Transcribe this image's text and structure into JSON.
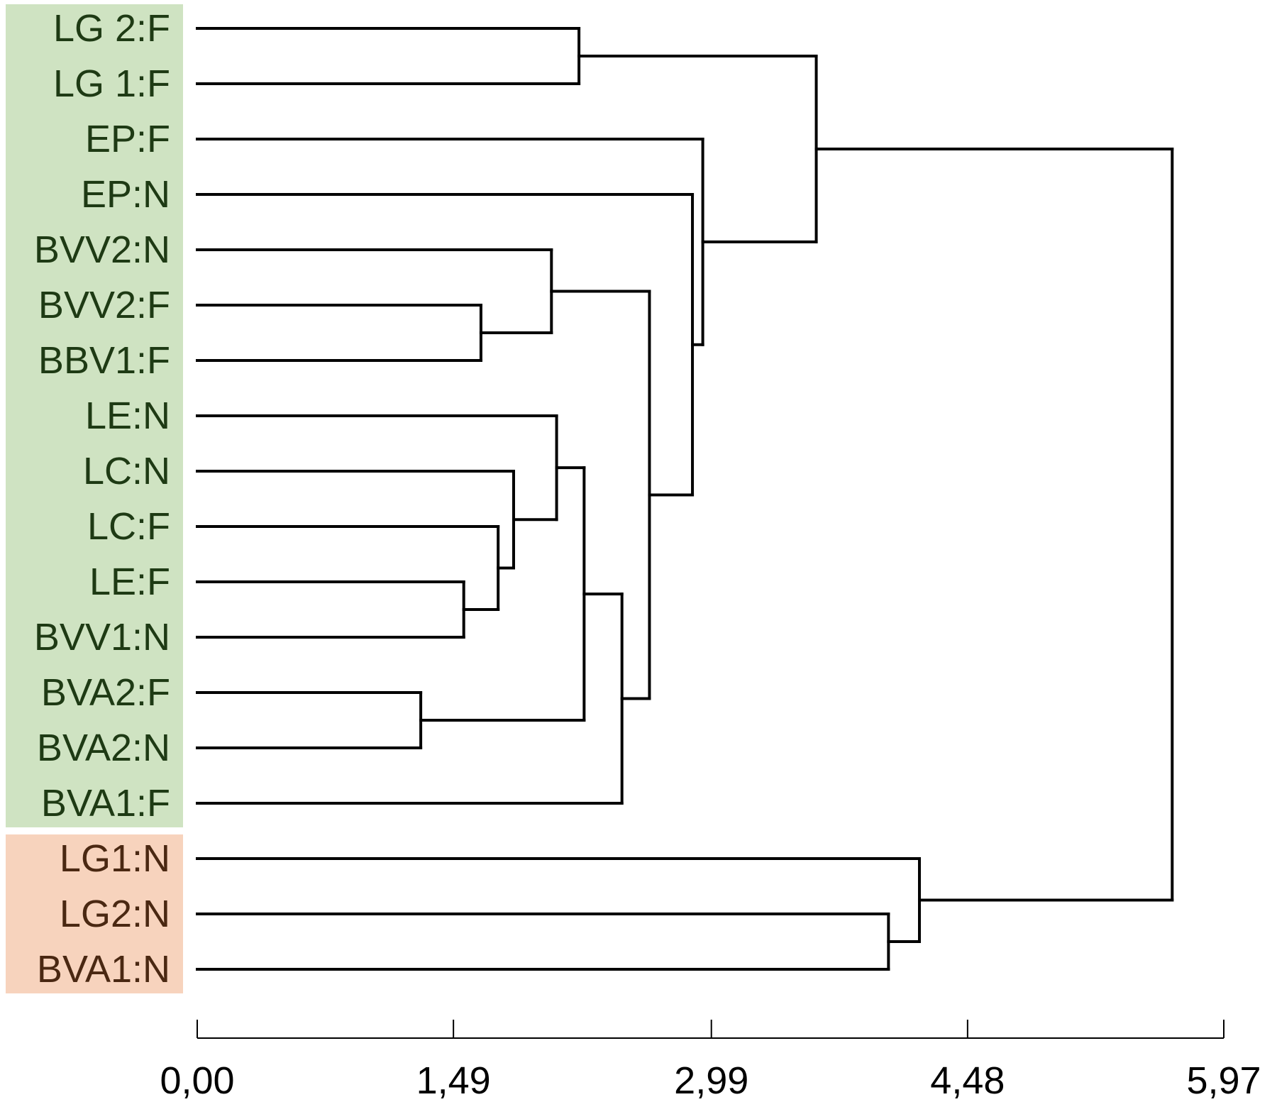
{
  "chart_data": {
    "type": "dendrogram",
    "orientation": "horizontal",
    "title": "",
    "xlabel": "",
    "ylabel": "",
    "xlim": [
      0,
      5.97
    ],
    "x_ticks": [
      {
        "value": 0.0,
        "label": "0,00"
      },
      {
        "value": 1.49,
        "label": "1,49"
      },
      {
        "value": 2.99,
        "label": "2,99"
      },
      {
        "value": 4.48,
        "label": "4,48"
      },
      {
        "value": 5.97,
        "label": "5,97"
      }
    ],
    "groups": [
      {
        "name": "green",
        "color": "#cfe3c2",
        "text_color": "#1e3a14",
        "leaves": [
          0,
          14
        ]
      },
      {
        "name": "orange",
        "color": "#f7d3bd",
        "text_color": "#4a2812",
        "leaves": [
          15,
          17
        ]
      }
    ],
    "leaves": [
      "LG 2:F",
      "LG 1:F",
      "EP:F",
      "EP:N",
      "BVV2:N",
      "BVV2:F",
      "BBV1:F",
      "LE:N",
      "LC:N",
      "LC:F",
      "LE:F",
      "BVV1:N",
      "BVA2:F",
      "BVA2:N",
      "BVA1:F",
      "LG1:N",
      "LG2:N",
      "BVA1:N"
    ],
    "merges": [
      {
        "id": "m1",
        "children": [
          "BVA2:F",
          "BVA2:N"
        ],
        "height": 1.3
      },
      {
        "id": "m2",
        "children": [
          "LE:F",
          "BVV1:N"
        ],
        "height": 1.55
      },
      {
        "id": "m3",
        "children": [
          "BVV2:F",
          "BBV1:F"
        ],
        "height": 1.65
      },
      {
        "id": "m4",
        "children": [
          "LC:F",
          "m2"
        ],
        "height": 1.75
      },
      {
        "id": "m5",
        "children": [
          "LC:N",
          "m4"
        ],
        "height": 1.84
      },
      {
        "id": "m6",
        "children": [
          "BVV2:N",
          "m3"
        ],
        "height": 2.06
      },
      {
        "id": "m7",
        "children": [
          "LE:N",
          "m5"
        ],
        "height": 2.09
      },
      {
        "id": "m8",
        "children": [
          "LG 2:F",
          "LG 1:F"
        ],
        "height": 2.22
      },
      {
        "id": "m9",
        "children": [
          "m7",
          "m1"
        ],
        "height": 2.25
      },
      {
        "id": "m10",
        "children": [
          "m9",
          "BVA1:F"
        ],
        "height": 2.47
      },
      {
        "id": "m11",
        "children": [
          "m6",
          "m10"
        ],
        "height": 2.63
      },
      {
        "id": "m12",
        "children": [
          "EP:N",
          "m11"
        ],
        "height": 2.88
      },
      {
        "id": "m13",
        "children": [
          "EP:F",
          "m12"
        ],
        "height": 2.94
      },
      {
        "id": "m14",
        "children": [
          "m8",
          "m13"
        ],
        "height": 3.6
      },
      {
        "id": "m15",
        "children": [
          "LG2:N",
          "BVA1:N"
        ],
        "height": 4.02
      },
      {
        "id": "m16",
        "children": [
          "LG1:N",
          "m15"
        ],
        "height": 4.2
      },
      {
        "id": "m17",
        "children": [
          "m14",
          "m16"
        ],
        "height": 5.67
      }
    ]
  }
}
